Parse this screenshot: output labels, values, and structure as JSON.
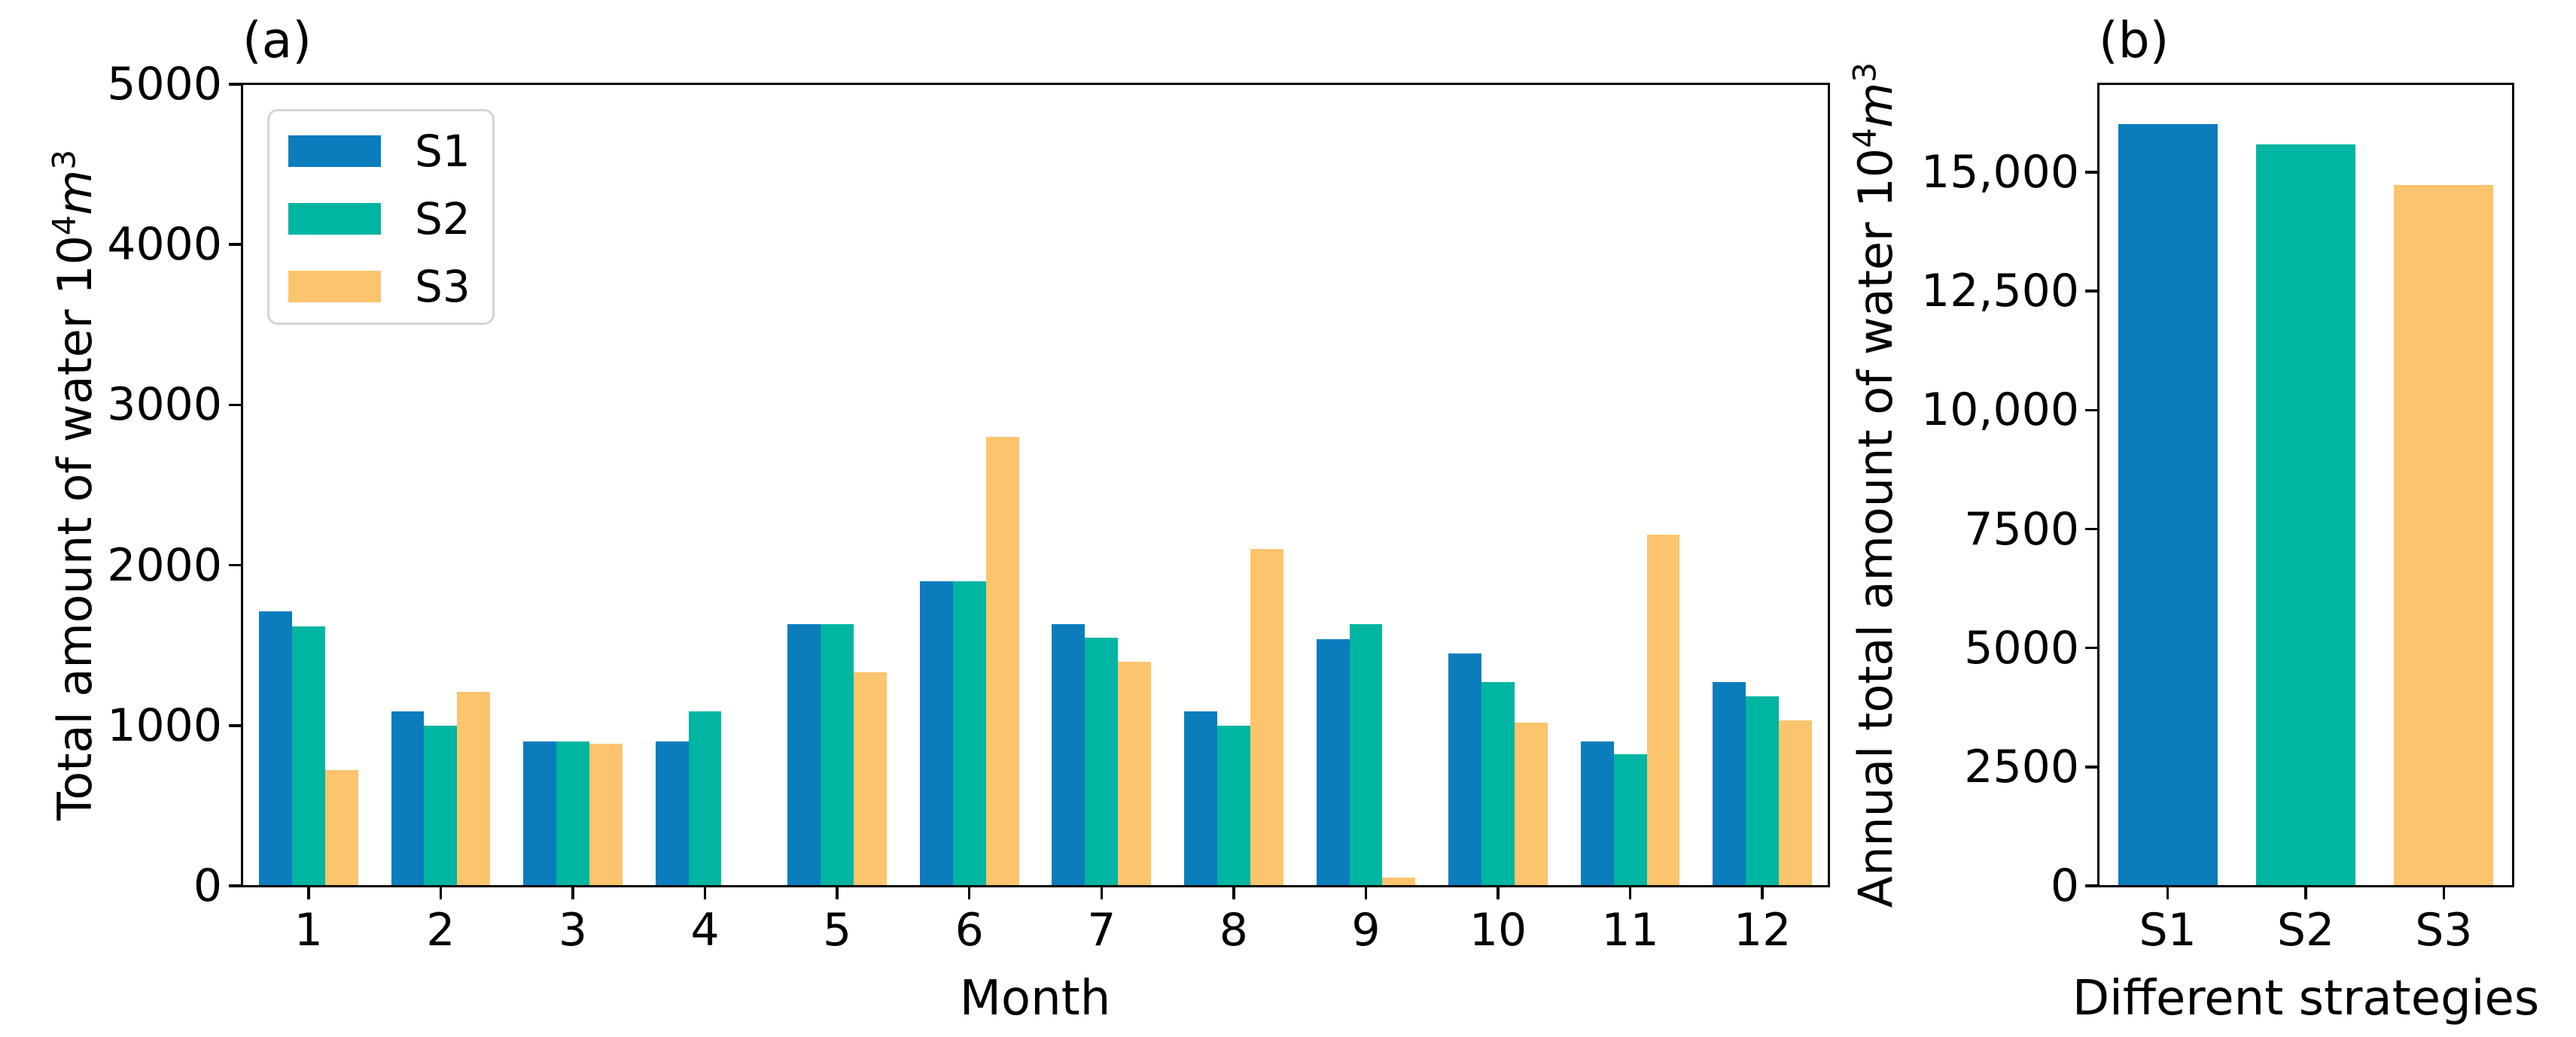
{
  "figure": {
    "background": "#ffffff"
  },
  "colors": {
    "s1": "#0b7dbd",
    "s2": "#00b5a1",
    "s3": "#fcc46d",
    "spine": "#000000",
    "legend_border": "#d4d4d4"
  },
  "chart_data": [
    {
      "type": "bar",
      "panel": "a",
      "title": "(a)",
      "xlabel": "Month",
      "ylabel": "Total amount of water 10⁴m³",
      "ylabel_parts": {
        "pre": "Total amount of water 10",
        "sup1": "4",
        "unit": "m",
        "sup2": "3"
      },
      "categories": [
        "1",
        "2",
        "3",
        "4",
        "5",
        "6",
        "7",
        "8",
        "9",
        "10",
        "11",
        "12"
      ],
      "series": [
        {
          "name": "S1",
          "color": "#0b7dbd",
          "values": [
            1710,
            1090,
            900,
            900,
            1630,
            1900,
            1630,
            1090,
            1540,
            1450,
            900,
            1270
          ]
        },
        {
          "name": "S2",
          "color": "#00b5a1",
          "values": [
            1620,
            1000,
            900,
            1090,
            1630,
            1900,
            1550,
            1000,
            1630,
            1270,
            820,
            1180
          ]
        },
        {
          "name": "S3",
          "color": "#fcc46d",
          "values": [
            720,
            1210,
            885,
            0,
            1330,
            2800,
            1400,
            2100,
            50,
            1020,
            2190,
            1030
          ]
        }
      ],
      "ylim": [
        0,
        5000
      ],
      "yticks": {
        "values": [
          0,
          1000,
          2000,
          3000,
          4000,
          5000
        ],
        "labels": [
          "0",
          "1000",
          "2000",
          "3000",
          "4000",
          "5000"
        ]
      },
      "legend": {
        "position": "upper left",
        "entries": [
          "S1",
          "S2",
          "S3"
        ]
      },
      "grid": false
    },
    {
      "type": "bar",
      "panel": "b",
      "title": "(b)",
      "xlabel": "Different strategies",
      "ylabel": "Annual total amount of water 10⁴m³",
      "ylabel_parts": {
        "pre": "Annual total amount of water 10",
        "sup1": "4",
        "unit": "m",
        "sup2": "3"
      },
      "categories": [
        "S1",
        "S2",
        "S3"
      ],
      "values": [
        16010,
        15590,
        14735
      ],
      "bar_colors": [
        "#0b7dbd",
        "#00b5a1",
        "#fcc46d"
      ],
      "ylim": [
        0,
        16850
      ],
      "yticks": {
        "values": [
          0,
          2500,
          5000,
          7500,
          10000,
          12500,
          15000
        ],
        "labels": [
          "0",
          "2500",
          "5000",
          "7500",
          "10,000",
          "12,500",
          "15,000"
        ]
      },
      "legend": null,
      "grid": false
    }
  ]
}
